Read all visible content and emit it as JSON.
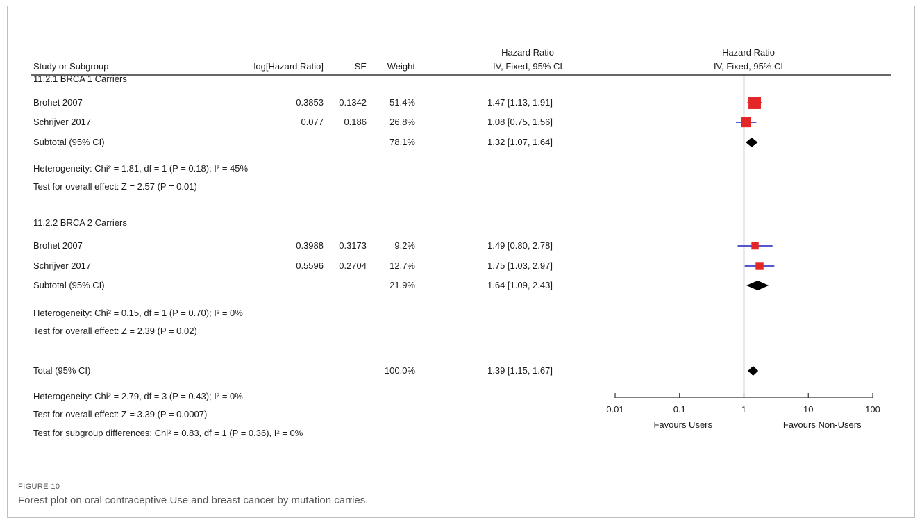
{
  "chart_data": {
    "type": "forest",
    "scale": "log",
    "xlim": [
      0.01,
      100
    ],
    "ticks": [
      "0.01",
      "0.1",
      "1",
      "10",
      "100"
    ],
    "reference_line": 1,
    "favours_left": "Favours Users",
    "favours_right": "Favours Non-Users",
    "headers": {
      "hr_top": "Hazard Ratio",
      "plot_top": "Hazard Ratio",
      "study": "Study or Subgroup",
      "loghr": "log[Hazard Ratio]",
      "se": "SE",
      "weight": "Weight",
      "hr": "IV, Fixed, 95% CI",
      "plot": "IV, Fixed, 95% CI"
    },
    "groups": [
      {
        "title": "11.2.1 BRCA 1 Carriers",
        "studies": [
          {
            "name": "Brohet 2007",
            "loghr": "0.3853",
            "se": "0.1342",
            "weight": "51.4%",
            "ci": "1.47 [1.13, 1.91]",
            "hr": 1.47,
            "lo": 1.13,
            "hi": 1.91,
            "w": 51.4
          },
          {
            "name": "Schrijver 2017",
            "loghr": "0.077",
            "se": "0.186",
            "weight": "26.8%",
            "ci": "1.08 [0.75, 1.56]",
            "hr": 1.08,
            "lo": 0.75,
            "hi": 1.56,
            "w": 26.8
          }
        ],
        "subtotal": {
          "label": "Subtotal (95% CI)",
          "weight": "78.1%",
          "ci": "1.32 [1.07, 1.64]",
          "hr": 1.32,
          "lo": 1.07,
          "hi": 1.64
        },
        "heterogeneity": "Heterogeneity: Chi² = 1.81, df = 1 (P = 0.18); I² = 45%",
        "overall": "Test for overall effect: Z = 2.57 (P = 0.01)"
      },
      {
        "title": "11.2.2 BRCA 2 Carriers",
        "studies": [
          {
            "name": "Brohet 2007",
            "loghr": "0.3988",
            "se": "0.3173",
            "weight": "9.2%",
            "ci": "1.49 [0.80, 2.78]",
            "hr": 1.49,
            "lo": 0.8,
            "hi": 2.78,
            "w": 9.2
          },
          {
            "name": "Schrijver 2017",
            "loghr": "0.5596",
            "se": "0.2704",
            "weight": "12.7%",
            "ci": "1.75 [1.03, 2.97]",
            "hr": 1.75,
            "lo": 1.03,
            "hi": 2.97,
            "w": 12.7
          }
        ],
        "subtotal": {
          "label": "Subtotal (95% CI)",
          "weight": "21.9%",
          "ci": "1.64 [1.09, 2.43]",
          "hr": 1.64,
          "lo": 1.09,
          "hi": 2.43
        },
        "heterogeneity": "Heterogeneity: Chi² = 0.15, df = 1 (P = 0.70); I² = 0%",
        "overall": "Test for overall effect: Z = 2.39 (P = 0.02)"
      }
    ],
    "total": {
      "label": "Total (95% CI)",
      "weight": "100.0%",
      "ci": "1.39 [1.15, 1.67]",
      "hr": 1.39,
      "lo": 1.15,
      "hi": 1.67,
      "heterogeneity": "Heterogeneity: Chi² = 2.79, df = 3 (P = 0.43); I² = 0%",
      "overall": "Test for overall effect: Z = 3.39 (P = 0.0007)",
      "subgroup": "Test for subgroup differences: Chi² = 0.83, df = 1 (P = 0.36), I² = 0%"
    },
    "colors": {
      "study_marker": "#e32626",
      "diamond": "#000000",
      "ci_line": "#1f1fbf",
      "rule": "#333333"
    }
  },
  "caption": {
    "label": "FIGURE 10",
    "text": "Forest plot on oral contraceptive Use and breast cancer by mutation carries."
  }
}
